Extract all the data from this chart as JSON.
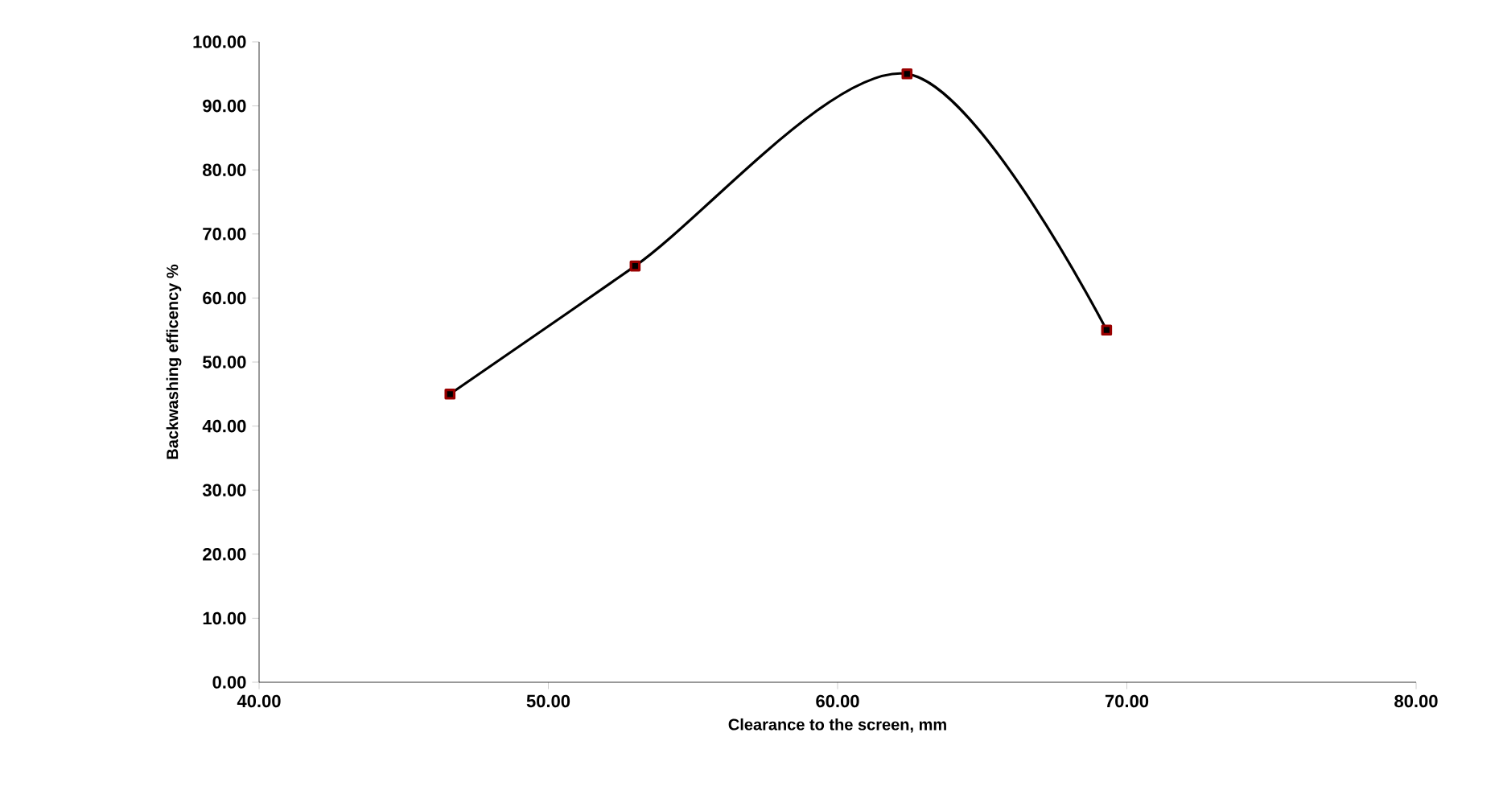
{
  "chart_data": {
    "type": "line",
    "xlabel": "Clearance to the screen, mm",
    "ylabel": "Backwashing efficency %",
    "x": [
      46.6,
      53.0,
      62.4,
      69.3
    ],
    "series": [
      {
        "color": "#000000",
        "values": [
          45,
          65,
          95,
          55
        ]
      }
    ],
    "marker": "square",
    "line_style": "solid",
    "xlim": [
      40,
      80
    ],
    "ylim": [
      0,
      100
    ],
    "xticks": [
      {
        "value": 40,
        "label": "40.00"
      },
      {
        "value": 50,
        "label": "50.00"
      },
      {
        "value": 60,
        "label": "60.00"
      },
      {
        "value": 70,
        "label": "70.00"
      },
      {
        "value": 80,
        "label": "80.00"
      }
    ],
    "yticks": [
      {
        "value": 0,
        "label": "0.00"
      },
      {
        "value": 10,
        "label": "10.00"
      },
      {
        "value": 20,
        "label": "20.00"
      },
      {
        "value": 30,
        "label": "30.00"
      },
      {
        "value": 40,
        "label": "40.00"
      },
      {
        "value": 50,
        "label": "50.00"
      },
      {
        "value": 60,
        "label": "60.00"
      },
      {
        "value": 70,
        "label": "70.00"
      },
      {
        "value": 80,
        "label": "80.00"
      },
      {
        "value": 90,
        "label": "90.00"
      },
      {
        "value": 100,
        "label": "100.00"
      }
    ]
  }
}
